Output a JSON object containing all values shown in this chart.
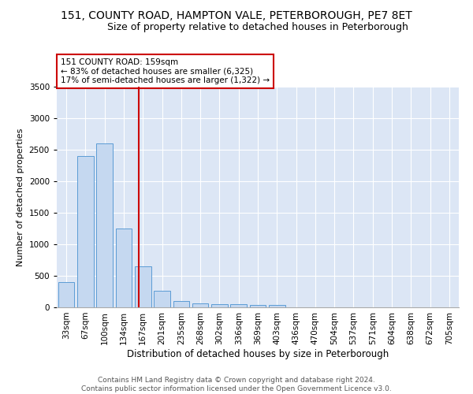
{
  "title1": "151, COUNTY ROAD, HAMPTON VALE, PETERBOROUGH, PE7 8ET",
  "title2": "Size of property relative to detached houses in Peterborough",
  "xlabel": "Distribution of detached houses by size in Peterborough",
  "ylabel": "Number of detached properties",
  "categories": [
    "33sqm",
    "67sqm",
    "100sqm",
    "134sqm",
    "167sqm",
    "201sqm",
    "235sqm",
    "268sqm",
    "302sqm",
    "336sqm",
    "369sqm",
    "403sqm",
    "436sqm",
    "470sqm",
    "504sqm",
    "537sqm",
    "571sqm",
    "604sqm",
    "638sqm",
    "672sqm",
    "705sqm"
  ],
  "values": [
    400,
    2400,
    2600,
    1250,
    650,
    260,
    100,
    65,
    55,
    45,
    40,
    35,
    0,
    0,
    0,
    0,
    0,
    0,
    0,
    0,
    0
  ],
  "bar_color": "#c5d8f0",
  "bar_edge_color": "#5b9bd5",
  "vline_color": "#cc0000",
  "vline_pos": 3.77,
  "annotation_text": "151 COUNTY ROAD: 159sqm\n← 83% of detached houses are smaller (6,325)\n17% of semi-detached houses are larger (1,322) →",
  "annotation_box_color": "#ffffff",
  "annotation_box_edge": "#cc0000",
  "ylim": [
    0,
    3500
  ],
  "yticks": [
    0,
    500,
    1000,
    1500,
    2000,
    2500,
    3000,
    3500
  ],
  "plot_bg_color": "#dce6f5",
  "footer": "Contains HM Land Registry data © Crown copyright and database right 2024.\nContains public sector information licensed under the Open Government Licence v3.0.",
  "title1_fontsize": 10,
  "title2_fontsize": 9,
  "xlabel_fontsize": 8.5,
  "ylabel_fontsize": 8,
  "tick_fontsize": 7.5,
  "footer_fontsize": 6.5
}
